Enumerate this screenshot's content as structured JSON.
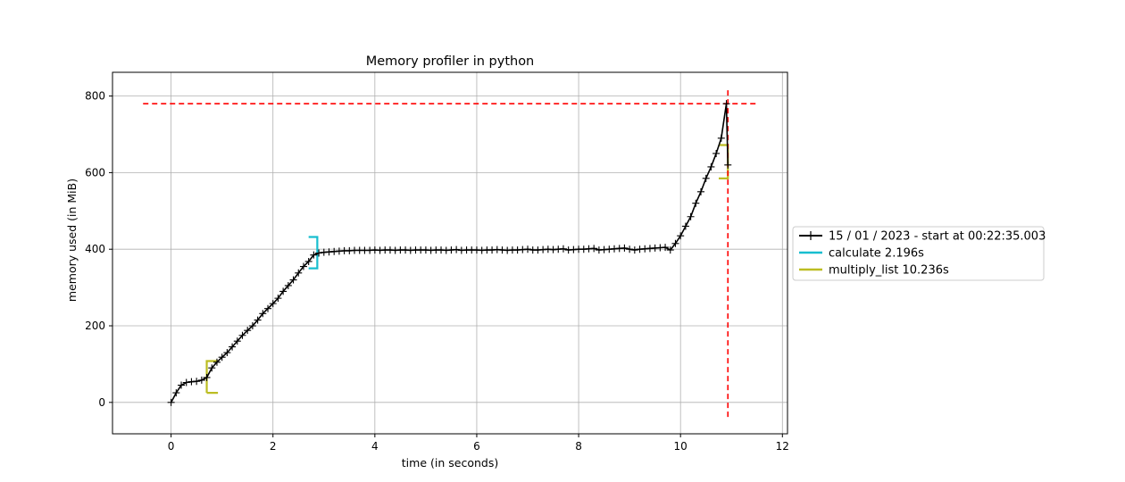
{
  "chart_data": {
    "type": "line",
    "title": "Memory profiler in python",
    "xlabel": "time (in seconds)",
    "ylabel": "memory used (in MiB)",
    "xlim": [
      -1.15,
      12.1
    ],
    "ylim": [
      -82,
      862
    ],
    "xticks": [
      0,
      2,
      4,
      6,
      8,
      10,
      12
    ],
    "yticks": [
      0,
      200,
      400,
      600,
      800
    ],
    "grid": true,
    "legend_position": "outside-right",
    "colors": {
      "memory": "#000000",
      "calculate": "#17becf",
      "multiply_list": "#bcbd22",
      "peak": "#ff0000",
      "grid": "#b0b0b0"
    },
    "series": [
      {
        "name": "15 / 01 / 2023 - start at 00:22:35.003",
        "marker": "+",
        "x": [
          0,
          0.1,
          0.2,
          0.3,
          0.4,
          0.5,
          0.6,
          0.7,
          0.8,
          0.9,
          1.0,
          1.1,
          1.2,
          1.3,
          1.4,
          1.5,
          1.6,
          1.7,
          1.8,
          1.9,
          2.0,
          2.1,
          2.2,
          2.3,
          2.4,
          2.5,
          2.6,
          2.7,
          2.8,
          2.9,
          3.0,
          3.1,
          3.2,
          3.3,
          3.4,
          3.5,
          3.6,
          3.7,
          3.8,
          3.9,
          4.0,
          4.1,
          4.2,
          4.3,
          4.4,
          4.5,
          4.6,
          4.7,
          4.8,
          4.9,
          5.0,
          5.1,
          5.2,
          5.3,
          5.4,
          5.5,
          5.6,
          5.7,
          5.8,
          5.9,
          6.0,
          6.1,
          6.2,
          6.3,
          6.4,
          6.5,
          6.6,
          6.7,
          6.8,
          6.9,
          7.0,
          7.1,
          7.2,
          7.3,
          7.4,
          7.5,
          7.6,
          7.7,
          7.8,
          7.9,
          8.0,
          8.1,
          8.2,
          8.3,
          8.4,
          8.5,
          8.6,
          8.7,
          8.8,
          8.9,
          9.0,
          9.1,
          9.2,
          9.3,
          9.4,
          9.5,
          9.6,
          9.7,
          9.8,
          9.9,
          10.0,
          10.1,
          10.2,
          10.3,
          10.4,
          10.5,
          10.6,
          10.7,
          10.8,
          10.9,
          10.93
        ],
        "y": [
          0,
          25,
          45,
          52,
          54,
          55,
          58,
          65,
          90,
          105,
          118,
          130,
          145,
          160,
          175,
          188,
          200,
          215,
          232,
          245,
          258,
          272,
          290,
          305,
          320,
          338,
          355,
          368,
          385,
          390,
          392,
          393,
          394,
          395,
          396,
          396,
          397,
          397,
          397,
          397,
          398,
          397,
          398,
          398,
          397,
          398,
          398,
          397,
          398,
          398,
          398,
          397,
          398,
          398,
          397,
          398,
          399,
          397,
          398,
          398,
          398,
          397,
          398,
          398,
          399,
          398,
          397,
          398,
          398,
          399,
          400,
          398,
          398,
          399,
          400,
          399,
          400,
          401,
          398,
          399,
          400,
          400,
          401,
          402,
          398,
          399,
          400,
          401,
          402,
          403,
          400,
          398,
          400,
          401,
          402,
          403,
          404,
          405,
          398,
          415,
          435,
          460,
          485,
          520,
          550,
          585,
          615,
          650,
          690,
          780,
          620
        ]
      }
    ],
    "markers": [
      {
        "name": "calculate 2.196s",
        "start": 2.7,
        "end": 2.87,
        "low": 350,
        "high": 432
      },
      {
        "name": "multiply_list 10.236s",
        "start": 0.7,
        "end": 0.92,
        "low": 25,
        "high": 108
      },
      {
        "name": "",
        "start": 10.75,
        "end": 10.93,
        "low": 585,
        "high": 672
      }
    ],
    "peak_lines": {
      "horizontal": {
        "y": 780,
        "x_from": -0.55,
        "x_to": 11.5
      },
      "vertical": {
        "x": 10.93,
        "y_from": -38,
        "y_to": 822
      }
    }
  }
}
